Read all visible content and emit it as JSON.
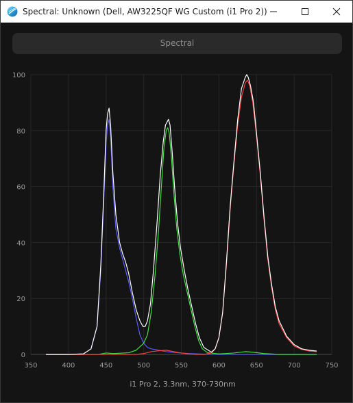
{
  "window": {
    "title": "Spectral: Unknown (Dell, AW3225QF WG Custom (i1 Pro 2))",
    "icon": "displaycal-icon"
  },
  "header": {
    "label": "Spectral"
  },
  "chart_data": {
    "type": "line",
    "xlabel": "i1 Pro 2, 3.3nm, 370-730nm",
    "ylabel": "",
    "xlim": [
      350,
      750
    ],
    "ylim": [
      0,
      100
    ],
    "xticks": [
      350,
      400,
      450,
      500,
      550,
      600,
      650,
      700,
      750
    ],
    "yticks": [
      0,
      20,
      40,
      60,
      80,
      100
    ],
    "grid": true,
    "legend": "none",
    "series": [
      {
        "color": "#5a5aff",
        "points": [
          [
            370,
            0
          ],
          [
            400,
            0
          ],
          [
            420,
            0.2
          ],
          [
            430,
            2
          ],
          [
            438,
            10
          ],
          [
            443,
            30
          ],
          [
            447,
            55
          ],
          [
            450,
            75
          ],
          [
            452,
            82
          ],
          [
            454,
            84
          ],
          [
            456,
            78
          ],
          [
            459,
            60
          ],
          [
            463,
            45
          ],
          [
            468,
            38
          ],
          [
            472,
            34
          ],
          [
            476,
            30
          ],
          [
            480,
            26
          ],
          [
            485,
            20
          ],
          [
            490,
            13
          ],
          [
            495,
            7
          ],
          [
            500,
            4
          ],
          [
            505,
            2.5
          ],
          [
            510,
            2
          ],
          [
            520,
            1.5
          ],
          [
            530,
            1
          ],
          [
            545,
            0.6
          ],
          [
            560,
            0.3
          ],
          [
            580,
            0.1
          ],
          [
            600,
            0
          ],
          [
            730,
            0
          ]
        ]
      },
      {
        "color": "#40e040",
        "points": [
          [
            370,
            0
          ],
          [
            440,
            0
          ],
          [
            450,
            0.5
          ],
          [
            460,
            0.3
          ],
          [
            480,
            0.6
          ],
          [
            490,
            1.5
          ],
          [
            500,
            4
          ],
          [
            505,
            7
          ],
          [
            510,
            15
          ],
          [
            515,
            28
          ],
          [
            520,
            45
          ],
          [
            524,
            62
          ],
          [
            527,
            74
          ],
          [
            530,
            80
          ],
          [
            532,
            81
          ],
          [
            534,
            79
          ],
          [
            537,
            70
          ],
          [
            540,
            58
          ],
          [
            544,
            45
          ],
          [
            548,
            36
          ],
          [
            553,
            28
          ],
          [
            558,
            22
          ],
          [
            563,
            16
          ],
          [
            568,
            10
          ],
          [
            573,
            5
          ],
          [
            578,
            2
          ],
          [
            585,
            0.6
          ],
          [
            600,
            0.2
          ],
          [
            620,
            0.5
          ],
          [
            635,
            1
          ],
          [
            645,
            0.8
          ],
          [
            660,
            0.3
          ],
          [
            680,
            0
          ],
          [
            730,
            0
          ]
        ]
      },
      {
        "color": "#ff4040",
        "points": [
          [
            370,
            0
          ],
          [
            490,
            0
          ],
          [
            500,
            0.3
          ],
          [
            510,
            1
          ],
          [
            520,
            1.3
          ],
          [
            530,
            1.5
          ],
          [
            540,
            1
          ],
          [
            550,
            0.5
          ],
          [
            560,
            0.2
          ],
          [
            570,
            0
          ],
          [
            580,
            0
          ],
          [
            590,
            0.5
          ],
          [
            595,
            2
          ],
          [
            600,
            6
          ],
          [
            605,
            15
          ],
          [
            610,
            32
          ],
          [
            615,
            52
          ],
          [
            620,
            68
          ],
          [
            625,
            82
          ],
          [
            630,
            92
          ],
          [
            635,
            97
          ],
          [
            638,
            98
          ],
          [
            641,
            96
          ],
          [
            645,
            90
          ],
          [
            650,
            78
          ],
          [
            655,
            64
          ],
          [
            660,
            48
          ],
          [
            665,
            34
          ],
          [
            670,
            24
          ],
          [
            675,
            16
          ],
          [
            680,
            11
          ],
          [
            690,
            6
          ],
          [
            700,
            3
          ],
          [
            710,
            1.8
          ],
          [
            720,
            1.2
          ],
          [
            730,
            1
          ]
        ]
      },
      {
        "color": "#ffffff",
        "points": [
          [
            370,
            0
          ],
          [
            400,
            0
          ],
          [
            420,
            0.2
          ],
          [
            430,
            2
          ],
          [
            438,
            10
          ],
          [
            443,
            32
          ],
          [
            447,
            58
          ],
          [
            450,
            80
          ],
          [
            452,
            86
          ],
          [
            454,
            88
          ],
          [
            456,
            82
          ],
          [
            459,
            65
          ],
          [
            463,
            50
          ],
          [
            468,
            40
          ],
          [
            472,
            36
          ],
          [
            476,
            33
          ],
          [
            480,
            29
          ],
          [
            485,
            22
          ],
          [
            490,
            16
          ],
          [
            495,
            12
          ],
          [
            499,
            10
          ],
          [
            502,
            10
          ],
          [
            505,
            12
          ],
          [
            509,
            18
          ],
          [
            513,
            30
          ],
          [
            518,
            48
          ],
          [
            522,
            64
          ],
          [
            526,
            76
          ],
          [
            529,
            82
          ],
          [
            531,
            83
          ],
          [
            533,
            84
          ],
          [
            535,
            82
          ],
          [
            538,
            72
          ],
          [
            541,
            60
          ],
          [
            545,
            47
          ],
          [
            549,
            38
          ],
          [
            554,
            30
          ],
          [
            559,
            23
          ],
          [
            564,
            17
          ],
          [
            569,
            11
          ],
          [
            574,
            6
          ],
          [
            580,
            2.5
          ],
          [
            590,
            0.8
          ],
          [
            595,
            2
          ],
          [
            600,
            6
          ],
          [
            605,
            15
          ],
          [
            610,
            33
          ],
          [
            615,
            53
          ],
          [
            620,
            69
          ],
          [
            625,
            84
          ],
          [
            630,
            95
          ],
          [
            635,
            99
          ],
          [
            637,
            100
          ],
          [
            639,
            99
          ],
          [
            642,
            96
          ],
          [
            646,
            90
          ],
          [
            650,
            79
          ],
          [
            655,
            65
          ],
          [
            660,
            49
          ],
          [
            665,
            35
          ],
          [
            670,
            25
          ],
          [
            675,
            17
          ],
          [
            680,
            12
          ],
          [
            690,
            6.5
          ],
          [
            700,
            3.5
          ],
          [
            710,
            2
          ],
          [
            720,
            1.5
          ],
          [
            730,
            1.2
          ]
        ]
      }
    ]
  }
}
